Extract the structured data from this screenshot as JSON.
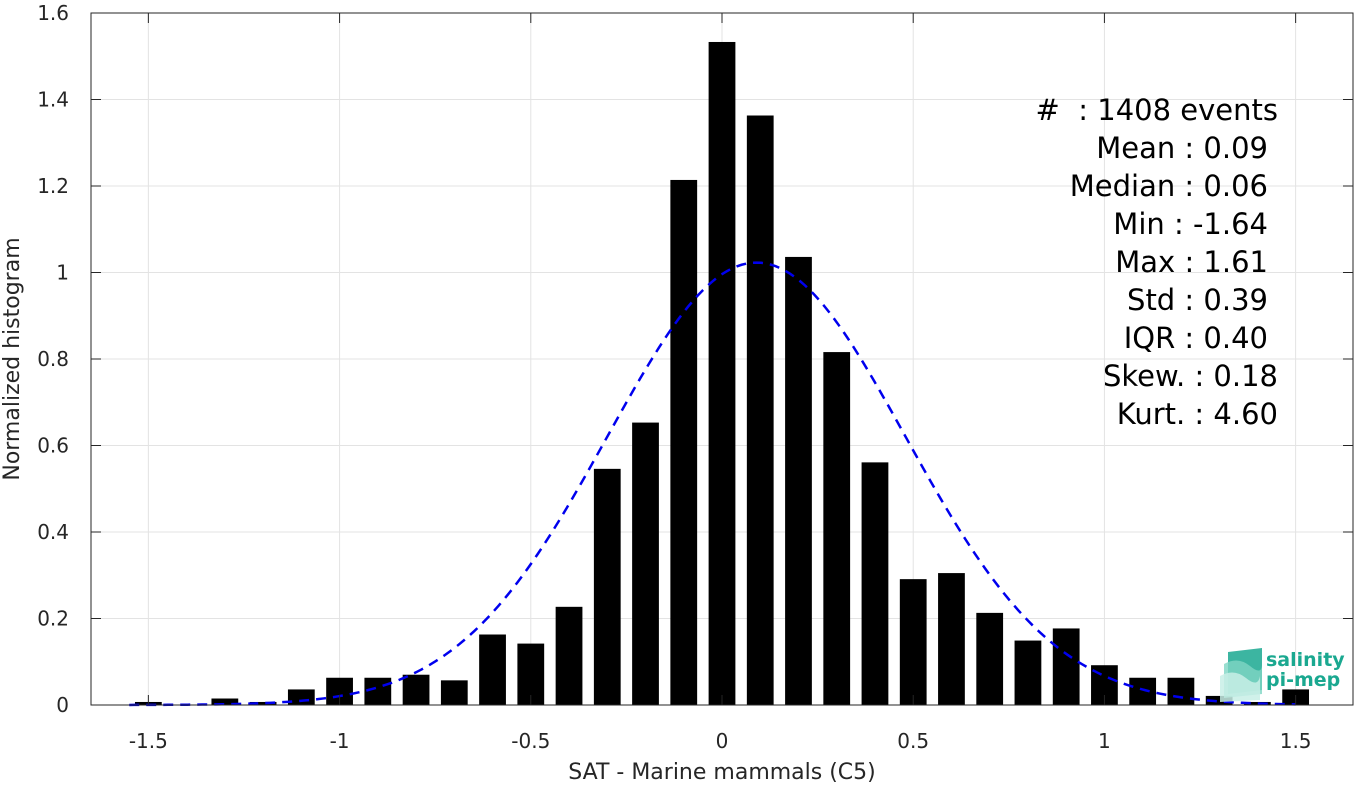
{
  "chart_data": {
    "type": "bar",
    "xlabel": "SAT - Marine mammals (C5)",
    "ylabel": "Normalized histogram",
    "xlim": [
      -1.65,
      1.65
    ],
    "ylim": [
      0,
      1.6
    ],
    "xticks": [
      -1.5,
      -1,
      -0.5,
      0,
      0.5,
      1,
      1.5
    ],
    "xtick_labels": [
      "-1.5",
      "-1",
      "-0.5",
      "0",
      "0.5",
      "1",
      "1.5"
    ],
    "yticks": [
      0,
      0.2,
      0.4,
      0.6,
      0.8,
      1,
      1.2,
      1.4,
      1.6
    ],
    "ytick_labels": [
      "0",
      "0.2",
      "0.4",
      "0.6",
      "0.8",
      "1",
      "1.2",
      "1.4",
      "1.6"
    ],
    "grid": true,
    "bar_color": "#000000",
    "bar_width": 0.07,
    "bins": [
      {
        "x": -1.5,
        "y": 0.007
      },
      {
        "x": -1.3,
        "y": 0.015
      },
      {
        "x": -1.2,
        "y": 0.007
      },
      {
        "x": -1.1,
        "y": 0.036
      },
      {
        "x": -1.0,
        "y": 0.063
      },
      {
        "x": -0.9,
        "y": 0.063
      },
      {
        "x": -0.8,
        "y": 0.07
      },
      {
        "x": -0.7,
        "y": 0.057
      },
      {
        "x": -0.6,
        "y": 0.163
      },
      {
        "x": -0.5,
        "y": 0.142
      },
      {
        "x": -0.4,
        "y": 0.227
      },
      {
        "x": -0.3,
        "y": 0.546
      },
      {
        "x": -0.2,
        "y": 0.653
      },
      {
        "x": -0.1,
        "y": 1.214
      },
      {
        "x": 0.0,
        "y": 1.533
      },
      {
        "x": 0.1,
        "y": 1.363
      },
      {
        "x": 0.2,
        "y": 1.036
      },
      {
        "x": 0.3,
        "y": 0.816
      },
      {
        "x": 0.4,
        "y": 0.561
      },
      {
        "x": 0.5,
        "y": 0.291
      },
      {
        "x": 0.6,
        "y": 0.305
      },
      {
        "x": 0.7,
        "y": 0.213
      },
      {
        "x": 0.8,
        "y": 0.149
      },
      {
        "x": 0.9,
        "y": 0.177
      },
      {
        "x": 1.0,
        "y": 0.092
      },
      {
        "x": 1.1,
        "y": 0.063
      },
      {
        "x": 1.2,
        "y": 0.063
      },
      {
        "x": 1.3,
        "y": 0.021
      },
      {
        "x": 1.4,
        "y": 0.007
      },
      {
        "x": 1.5,
        "y": 0.036
      }
    ],
    "fit_curve": {
      "style": "dashed",
      "color": "#0000ee",
      "mean": 0.09,
      "std": 0.39,
      "x_range": [
        -1.55,
        1.5
      ]
    },
    "stats": {
      "events": "#  : 1408 events",
      "mean": "Mean : 0.09",
      "median": "Median : 0.06",
      "min": "Min : -1.64",
      "max": "Max : 1.61",
      "std": "Std : 0.39",
      "iqr": "IQR : 0.40",
      "skew": "Skew. : 0.18",
      "kurt": "Kurt. : 4.60"
    }
  },
  "logo": {
    "line1": "salinity",
    "line2": "pi-mep",
    "color": "#1aa890"
  }
}
